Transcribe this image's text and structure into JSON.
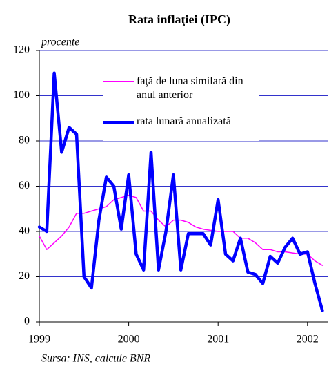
{
  "chart_data": {
    "type": "line",
    "title": "Rata inflaţiei (IPC)",
    "y_label": "procente",
    "source": "Sursa: INS, calcule BNR",
    "categories": [
      "1999",
      null,
      null,
      null,
      null,
      null,
      null,
      null,
      null,
      null,
      null,
      null,
      "2000",
      null,
      null,
      null,
      null,
      null,
      null,
      null,
      null,
      null,
      null,
      null,
      "2001",
      null,
      null,
      null,
      null,
      null,
      null,
      null,
      null,
      null,
      null,
      null,
      "2002",
      null,
      null
    ],
    "series": [
      {
        "name": "faţă de luna similară din anul anterior",
        "color": "#ff00ff",
        "width": 1.5,
        "values": [
          38,
          32,
          35,
          38,
          42,
          48,
          48,
          49,
          50,
          51,
          54,
          55,
          56,
          55,
          49,
          49,
          45,
          42,
          45,
          45,
          44,
          42,
          41,
          40.5,
          40,
          40,
          40,
          37,
          37,
          35,
          32,
          32,
          31,
          31,
          30.5,
          30,
          30,
          27,
          25
        ]
      },
      {
        "name": "rata lunară anualizată",
        "color": "#0000ff",
        "width": 4.5,
        "values": [
          42,
          40,
          110,
          75,
          86,
          83,
          20,
          15,
          45,
          64,
          60,
          41,
          65,
          30,
          23,
          75,
          23,
          40,
          65,
          23,
          39,
          39,
          39,
          34,
          54,
          30,
          27,
          37,
          22,
          21,
          17,
          29,
          26,
          33,
          37,
          30,
          31,
          17,
          5
        ]
      }
    ],
    "ylim": [
      0,
      120
    ],
    "yticks": [
      0,
      20,
      40,
      60,
      80,
      100,
      120
    ],
    "grid": true,
    "grid_color": "#3333cc",
    "legend": "top-right"
  }
}
